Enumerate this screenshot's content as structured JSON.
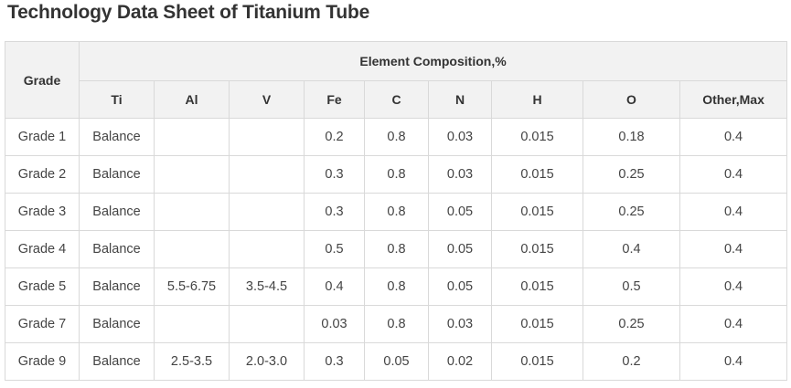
{
  "title": "Technology Data Sheet of Titanium Tube",
  "table": {
    "grade_header": "Grade",
    "group_header": "Element Composition,%",
    "columns": [
      "Ti",
      "Al",
      "V",
      "Fe",
      "C",
      "N",
      "H",
      "O",
      "Other,Max"
    ],
    "rows": [
      [
        "Grade 1",
        "Balance",
        "",
        "",
        "0.2",
        "0.8",
        "0.03",
        "0.015",
        "0.18",
        "0.4"
      ],
      [
        "Grade 2",
        "Balance",
        "",
        "",
        "0.3",
        "0.8",
        "0.03",
        "0.015",
        "0.25",
        "0.4"
      ],
      [
        "Grade 3",
        "Balance",
        "",
        "",
        "0.3",
        "0.8",
        "0.05",
        "0.015",
        "0.25",
        "0.4"
      ],
      [
        "Grade 4",
        "Balance",
        "",
        "",
        "0.5",
        "0.8",
        "0.05",
        "0.015",
        "0.4",
        "0.4"
      ],
      [
        "Grade 5",
        "Balance",
        "5.5-6.75",
        "3.5-4.5",
        "0.4",
        "0.8",
        "0.05",
        "0.015",
        "0.5",
        "0.4"
      ],
      [
        "Grade 7",
        "Balance",
        "",
        "",
        "0.03",
        "0.8",
        "0.03",
        "0.015",
        "0.25",
        "0.4"
      ],
      [
        "Grade 9",
        "Balance",
        "2.5-3.5",
        "2.0-3.0",
        "0.3",
        "0.05",
        "0.02",
        "0.015",
        "0.2",
        "0.4"
      ]
    ]
  }
}
